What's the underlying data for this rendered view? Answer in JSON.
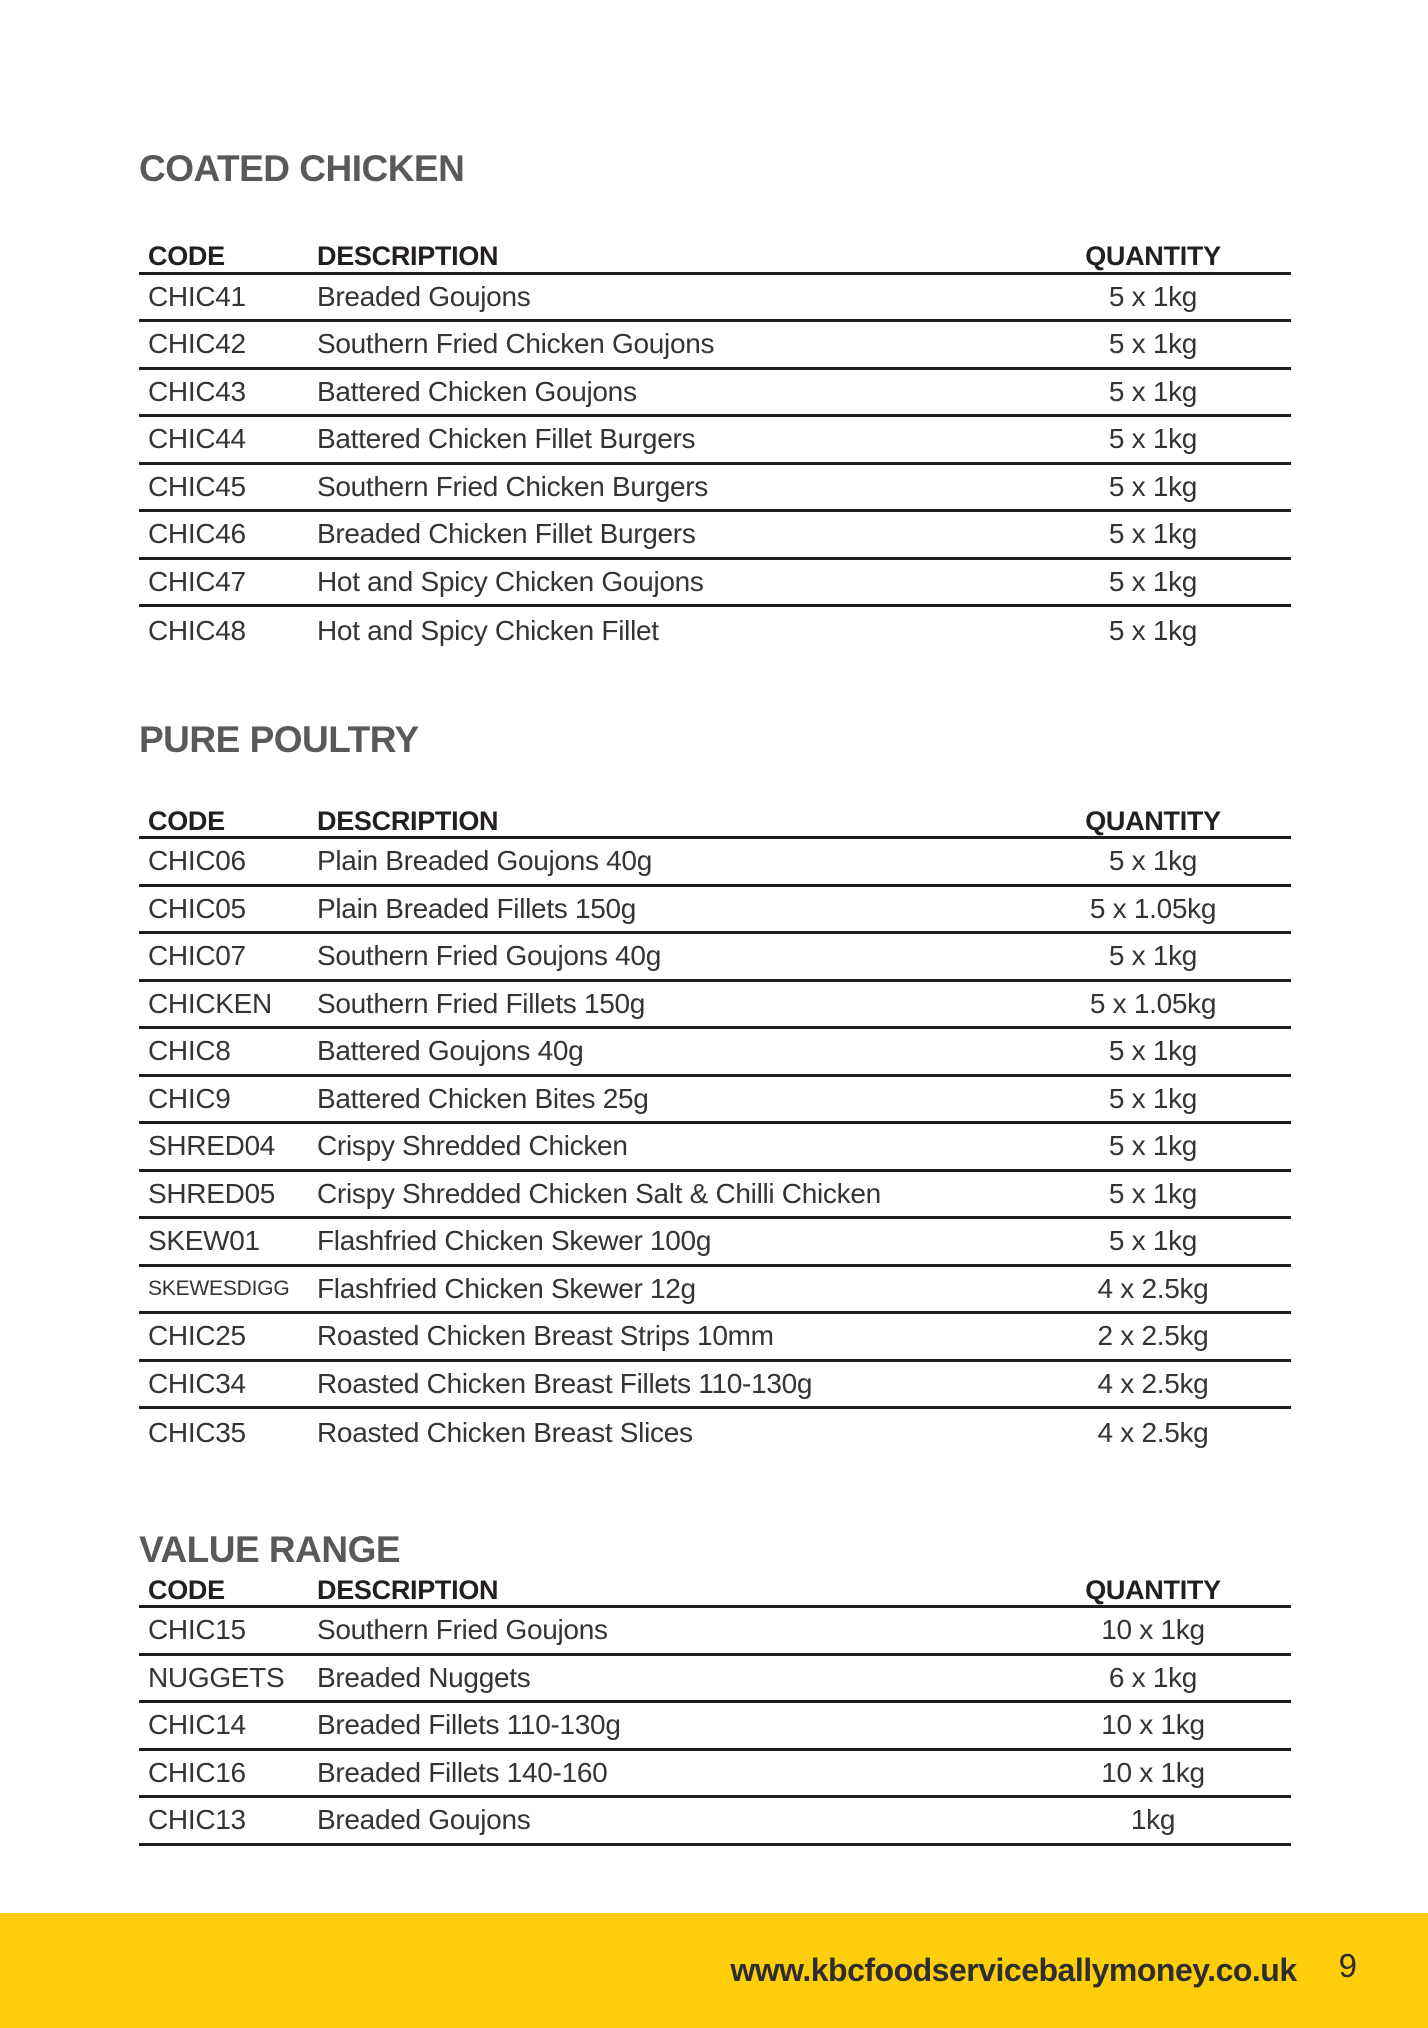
{
  "sections": [
    {
      "title": "COATED CHICKEN",
      "headers": {
        "code": "CODE",
        "description": "DESCRIPTION",
        "quantity": "QUANTITY"
      },
      "rows": [
        {
          "code": "CHIC41",
          "description": "Breaded Goujons",
          "quantity": "5 x 1kg"
        },
        {
          "code": "CHIC42",
          "description": "Southern Fried Chicken Goujons",
          "quantity": "5 x 1kg"
        },
        {
          "code": "CHIC43",
          "description": "Battered Chicken Goujons",
          "quantity": "5 x 1kg"
        },
        {
          "code": "CHIC44",
          "description": "Battered Chicken Fillet Burgers",
          "quantity": "5 x 1kg"
        },
        {
          "code": "CHIC45",
          "description": "Southern Fried Chicken Burgers",
          "quantity": "5 x 1kg"
        },
        {
          "code": "CHIC46",
          "description": "Breaded Chicken Fillet Burgers",
          "quantity": "5 x 1kg"
        },
        {
          "code": "CHIC47",
          "description": "Hot and Spicy Chicken Goujons",
          "quantity": "5 x 1kg"
        },
        {
          "code": "CHIC48",
          "description": "Hot and Spicy Chicken Fillet",
          "quantity": "5 x 1kg"
        }
      ]
    },
    {
      "title": "PURE POULTRY",
      "headers": {
        "code": "CODE",
        "description": "DESCRIPTION",
        "quantity": "QUANTITY"
      },
      "rows": [
        {
          "code": "CHIC06",
          "description": "Plain Breaded Goujons 40g",
          "quantity": "5 x 1kg"
        },
        {
          "code": "CHIC05",
          "description": "Plain Breaded Fillets 150g",
          "quantity": "5 x 1.05kg"
        },
        {
          "code": "CHIC07",
          "description": "Southern Fried Goujons 40g",
          "quantity": "5 x 1kg"
        },
        {
          "code": "CHICKEN",
          "description": "Southern Fried Fillets 150g",
          "quantity": "5 x 1.05kg"
        },
        {
          "code": "CHIC8",
          "description": "Battered Goujons 40g",
          "quantity": "5 x 1kg"
        },
        {
          "code": "CHIC9",
          "description": "Battered Chicken Bites 25g",
          "quantity": "5 x 1kg"
        },
        {
          "code": "SHRED04",
          "description": "Crispy Shredded Chicken",
          "quantity": "5 x 1kg"
        },
        {
          "code": "SHRED05",
          "description": "Crispy Shredded Chicken Salt & Chilli Chicken",
          "quantity": "5 x 1kg"
        },
        {
          "code": "SKEW01",
          "description": "Flashfried Chicken Skewer 100g",
          "quantity": "5 x 1kg"
        },
        {
          "code": "SKEWESDIGG",
          "description": "Flashfried Chicken Skewer 12g",
          "quantity": "4 x 2.5kg"
        },
        {
          "code": "CHIC25",
          "description": "Roasted Chicken Breast Strips 10mm",
          "quantity": "2 x 2.5kg"
        },
        {
          "code": "CHIC34",
          "description": "Roasted Chicken Breast Fillets 110-130g",
          "quantity": "4 x 2.5kg"
        },
        {
          "code": "CHIC35",
          "description": "Roasted Chicken Breast Slices",
          "quantity": "4 x 2.5kg"
        }
      ]
    },
    {
      "title": "VALUE RANGE",
      "headers": {
        "code": "CODE",
        "description": "DESCRIPTION",
        "quantity": "QUANTITY"
      },
      "rows": [
        {
          "code": "CHIC15",
          "description": "Southern Fried Goujons",
          "quantity": "10 x 1kg"
        },
        {
          "code": "NUGGETS",
          "description": "Breaded Nuggets",
          "quantity": "6 x 1kg"
        },
        {
          "code": "CHIC14",
          "description": "Breaded Fillets 110-130g",
          "quantity": "10 x 1kg"
        },
        {
          "code": "CHIC16",
          "description": "Breaded Fillets 140-160",
          "quantity": "10 x 1kg"
        },
        {
          "code": "CHIC13",
          "description": "Breaded Goujons",
          "quantity": "1kg"
        }
      ]
    }
  ],
  "footer": {
    "website": "www.kbcfoodserviceballymoney.co.uk",
    "page_number": "9"
  },
  "colors": {
    "accent_yellow": "#FFCE0A",
    "section_title_gray": "#58595B",
    "header_text": "#231F20",
    "row_text": "#343437",
    "rule": "#1E1E1E"
  }
}
